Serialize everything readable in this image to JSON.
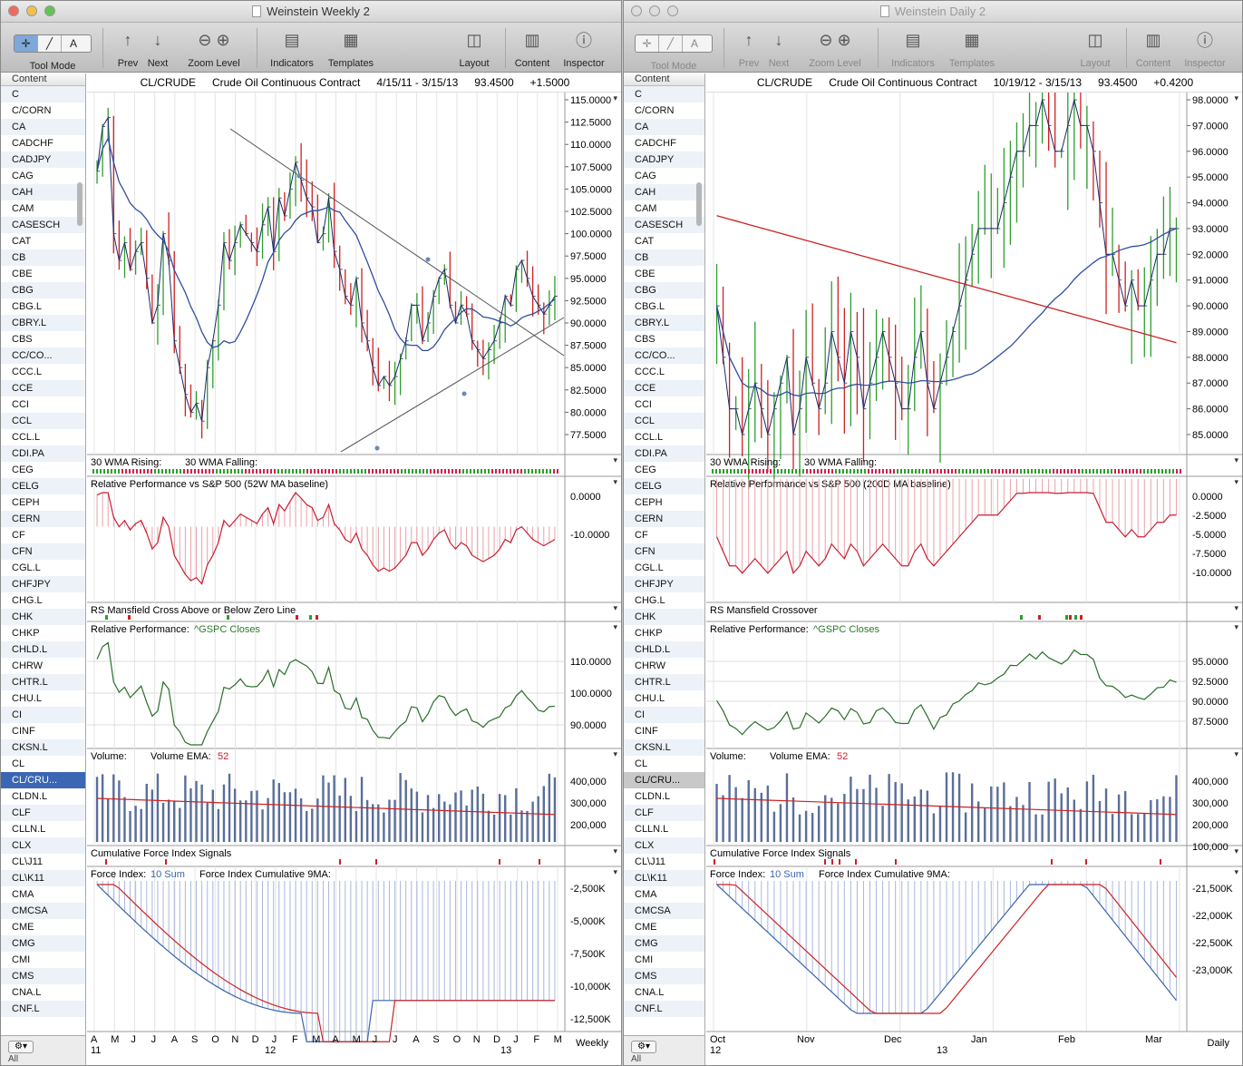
{
  "left_window": {
    "title": "Weinstein Weekly 2",
    "toolbar": {
      "tool_mode": "Tool Mode",
      "prev": "Prev",
      "next": "Next",
      "zoom_level": "Zoom Level",
      "indicators": "Indicators",
      "templates": "Templates",
      "layout": "Layout",
      "content": "Content",
      "inspector": "Inspector"
    },
    "symbol": "CL/CRUDE",
    "name": "Crude Oil Continuous Contract",
    "range": "4/15/11 - 3/15/13",
    "last": "93.4500",
    "change": "+1.5000",
    "periodicity": "Weekly",
    "x_labels": [
      "A",
      "M",
      "J",
      "J",
      "A",
      "S",
      "O",
      "N",
      "D",
      "J",
      "F",
      "M",
      "A",
      "M",
      "J",
      "J",
      "A",
      "S",
      "O",
      "N",
      "D",
      "J",
      "F",
      "M"
    ],
    "year_labels": [
      "11",
      "12",
      "13"
    ],
    "selected_symbol": "CL/CRU...",
    "panels": {
      "ma_label_rising": "30 WMA Rising:",
      "ma_label_falling": "30 WMA Falling:",
      "rel_perf_title": "Relative Performance vs S&P 500 (52W MA baseline)",
      "rs_cross_title": "RS Mansfield Cross Above or Below Zero Line",
      "rel_perf2_title": "Relative Performance:",
      "rel_perf2_series": "^GSPC Closes",
      "volume_label": "Volume:",
      "volume_ema_label": "Volume EMA:",
      "volume_ema_value": "52",
      "cfi_title": "Cumulative Force Index Signals",
      "force_label": "Force Index:",
      "force_sum": "10 Sum",
      "force_cum_label": "Force Index Cumulative 9MA:"
    }
  },
  "right_window": {
    "title": "Weinstein Daily 2",
    "toolbar": {
      "tool_mode": "Tool Mode",
      "prev": "Prev",
      "next": "Next",
      "zoom_level": "Zoom Level",
      "indicators": "Indicators",
      "templates": "Templates",
      "layout": "Layout",
      "content": "Content",
      "inspector": "Inspector"
    },
    "symbol": "CL/CRUDE",
    "name": "Crude Oil Continuous Contract",
    "range": "10/19/12 - 3/15/13",
    "last": "93.4500",
    "change": "+0.4200",
    "periodicity": "Daily",
    "x_labels": [
      "Oct",
      "Nov",
      "Dec",
      "Jan",
      "Feb",
      "Mar"
    ],
    "year_labels": [
      "12",
      "13"
    ],
    "selected_symbol": "CL/CRU...",
    "panels": {
      "ma_label_rising": "30 WMA Rising:",
      "ma_label_falling": "30 WMA Falling:",
      "rel_perf_title": "Relative Performance vs S&P 500 (200D MA baseline)",
      "rs_cross_title": "RS Mansfield Crossover",
      "rel_perf2_title": "Relative Performance:",
      "rel_perf2_series": "^GSPC Closes",
      "volume_label": "Volume:",
      "volume_ema_label": "Volume EMA:",
      "volume_ema_value": "52",
      "cfi_title": "Cumulative Force Index Signals",
      "force_label": "Force Index:",
      "force_sum": "10 Sum",
      "force_cum_label": "Force Index Cumulative 9MA:"
    }
  },
  "content_header": "Content",
  "footer_all": "All",
  "symbols": [
    "C",
    "C/CORN",
    "CA",
    "CADCHF",
    "CADJPY",
    "CAG",
    "CAH",
    "CAM",
    "CASESCH",
    "CAT",
    "CB",
    "CBE",
    "CBG",
    "CBG.L",
    "CBRY.L",
    "CBS",
    "CC/CO...",
    "CCC.L",
    "CCE",
    "CCI",
    "CCL",
    "CCL.L",
    "CDI.PA",
    "CEG",
    "CELG",
    "CEPH",
    "CERN",
    "CF",
    "CFN",
    "CGL.L",
    "CHFJPY",
    "CHG.L",
    "CHK",
    "CHKP",
    "CHLD.L",
    "CHRW",
    "CHTR.L",
    "CHU.L",
    "CI",
    "CINF",
    "CKSN.L",
    "CL",
    "CL/CRU...",
    "CLDN.L",
    "CLF",
    "CLLN.L",
    "CLX",
    "CL\\J11",
    "CL\\K11",
    "CMA",
    "CMCSA",
    "CME",
    "CMG",
    "CMI",
    "CMS",
    "CNA.L",
    "CNF.L"
  ],
  "chart_data": [
    {
      "type": "line",
      "title": "CL/CRUDE Crude Oil Continuous Contract (Weekly)",
      "price_ticks": [
        "115.0000",
        "112.5000",
        "110.0000",
        "107.5000",
        "105.0000",
        "102.5000",
        "100.0000",
        "97.5000",
        "95.0000",
        "92.5000",
        "90.0000",
        "87.5000",
        "85.0000",
        "82.5000",
        "80.0000",
        "77.5000"
      ],
      "closes": [
        107,
        112,
        113,
        100,
        97,
        99,
        96,
        98,
        99,
        95,
        90,
        92,
        100,
        97,
        88,
        85,
        82,
        80,
        81,
        79,
        85,
        88,
        92,
        99,
        97,
        99,
        101,
        100,
        99,
        98,
        101,
        103,
        98,
        104,
        102,
        105,
        108,
        106,
        104,
        103,
        99,
        100,
        104,
        98,
        96,
        93,
        92,
        95,
        90,
        88,
        85,
        83,
        84,
        83,
        84,
        86,
        88,
        92,
        92,
        88,
        90,
        93,
        95,
        96,
        92,
        90,
        92,
        91,
        88,
        87,
        86,
        87,
        88,
        90,
        93,
        92,
        96,
        97,
        95,
        93,
        92,
        91,
        92,
        93
      ],
      "rel_perf_ticks": [
        "0.0000",
        "-10.0000"
      ],
      "rel_perf2_ticks": [
        "110.0000",
        "100.0000",
        "90.0000"
      ],
      "volume_ticks": [
        "400,000",
        "300,000",
        "200,000"
      ],
      "force_ticks": [
        "-2,500K",
        "-5,000K",
        "-7,500K",
        "-10,000K",
        "-12,500K"
      ]
    },
    {
      "type": "line",
      "title": "CL/CRUDE Crude Oil Continuous Contract (Daily)",
      "price_ticks": [
        "98.0000",
        "97.0000",
        "96.0000",
        "95.0000",
        "94.0000",
        "93.0000",
        "92.0000",
        "91.0000",
        "90.0000",
        "89.0000",
        "88.0000",
        "87.0000",
        "86.0000",
        "85.0000"
      ],
      "closes": [
        90,
        88,
        86,
        86,
        85,
        86,
        87,
        86,
        85,
        86,
        87,
        88,
        85,
        86,
        88,
        87,
        86,
        87,
        89,
        88,
        87,
        89,
        88,
        86,
        87,
        88,
        89,
        88,
        87,
        86,
        86,
        88,
        89,
        87,
        86,
        87,
        88,
        89,
        90,
        91,
        92,
        93,
        93,
        93,
        93,
        94,
        95,
        96,
        96,
        97,
        97,
        98,
        97,
        96,
        96,
        97,
        98,
        97,
        97,
        96,
        94,
        92,
        92,
        91,
        90,
        91,
        90,
        90,
        91,
        92,
        92,
        93,
        93
      ],
      "rel_perf_ticks": [
        "0.0000",
        "-2.5000",
        "-5.0000",
        "-7.5000",
        "-10.0000"
      ],
      "rel_perf2_ticks": [
        "95.0000",
        "92.5000",
        "90.0000",
        "87.5000"
      ],
      "volume_ticks": [
        "400,000",
        "300,000",
        "200,000",
        "100,000"
      ],
      "force_ticks": [
        "-21,500K",
        "-22,000K",
        "-22,500K",
        "-23,000K"
      ]
    }
  ]
}
